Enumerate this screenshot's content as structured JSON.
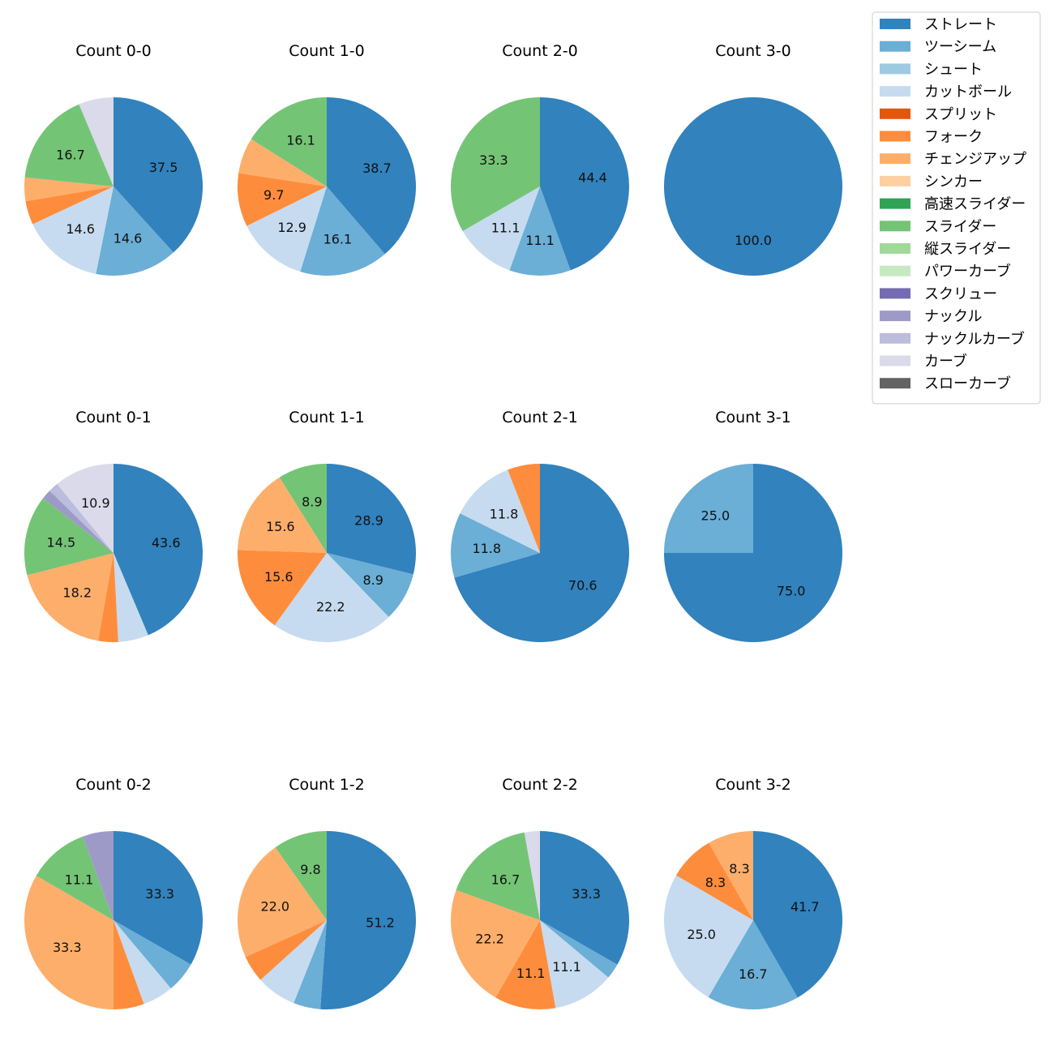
{
  "colors": {
    "ストレート": "#3182bd",
    "ツーシーム": "#6baed6",
    "シュート": "#9ecae1",
    "カットボール": "#c6dbef",
    "スプリット": "#e6550d",
    "フォーク": "#fd8d3c",
    "チェンジアップ": "#fdae6b",
    "シンカー": "#fdd0a2",
    "高速スライダー": "#31a354",
    "スライダー": "#74c476",
    "縦スライダー": "#a1d99b",
    "パワーカーブ": "#c7e9c0",
    "スクリュー": "#756bb1",
    "ナックル": "#9e9ac8",
    "ナックルカーブ": "#bcbddc",
    "カーブ": "#dadaeb",
    "スローカーブ": "#636363"
  },
  "legend": [
    "ストレート",
    "ツーシーム",
    "シュート",
    "カットボール",
    "スプリット",
    "フォーク",
    "チェンジアップ",
    "シンカー",
    "高速スライダー",
    "スライダー",
    "縦スライダー",
    "パワーカーブ",
    "スクリュー",
    "ナックル",
    "ナックルカーブ",
    "カーブ",
    "スローカーブ"
  ],
  "chart_data": [
    {
      "type": "pie",
      "title": "Count 0-0",
      "slices": [
        {
          "name": "ストレート",
          "value": 37.5,
          "label": "37.5"
        },
        {
          "name": "ツーシーム",
          "value": 14.6,
          "label": "14.6"
        },
        {
          "name": "カットボール",
          "value": 14.6,
          "label": "14.6"
        },
        {
          "name": "フォーク",
          "value": 4.2,
          "label": ""
        },
        {
          "name": "チェンジアップ",
          "value": 4.2,
          "label": ""
        },
        {
          "name": "スライダー",
          "value": 16.7,
          "label": "16.7"
        },
        {
          "name": "カーブ",
          "value": 6.2,
          "label": ""
        }
      ]
    },
    {
      "type": "pie",
      "title": "Count 1-0",
      "slices": [
        {
          "name": "ストレート",
          "value": 38.7,
          "label": "38.7"
        },
        {
          "name": "ツーシーム",
          "value": 16.1,
          "label": "16.1"
        },
        {
          "name": "カットボール",
          "value": 12.9,
          "label": "12.9"
        },
        {
          "name": "フォーク",
          "value": 9.7,
          "label": "9.7"
        },
        {
          "name": "チェンジアップ",
          "value": 6.5,
          "label": ""
        },
        {
          "name": "スライダー",
          "value": 16.1,
          "label": "16.1"
        }
      ]
    },
    {
      "type": "pie",
      "title": "Count 2-0",
      "slices": [
        {
          "name": "ストレート",
          "value": 44.4,
          "label": "44.4"
        },
        {
          "name": "ツーシーム",
          "value": 11.1,
          "label": "11.1"
        },
        {
          "name": "カットボール",
          "value": 11.1,
          "label": "11.1"
        },
        {
          "name": "スライダー",
          "value": 33.3,
          "label": "33.3"
        }
      ]
    },
    {
      "type": "pie",
      "title": "Count 3-0",
      "slices": [
        {
          "name": "ストレート",
          "value": 100.0,
          "label": "100.0"
        }
      ]
    },
    {
      "type": "pie",
      "title": "Count 0-1",
      "slices": [
        {
          "name": "ストレート",
          "value": 43.6,
          "label": "43.6"
        },
        {
          "name": "カットボール",
          "value": 5.5,
          "label": ""
        },
        {
          "name": "フォーク",
          "value": 3.6,
          "label": ""
        },
        {
          "name": "チェンジアップ",
          "value": 18.2,
          "label": "18.2"
        },
        {
          "name": "スライダー",
          "value": 14.5,
          "label": "14.5"
        },
        {
          "name": "ナックル",
          "value": 1.8,
          "label": ""
        },
        {
          "name": "ナックルカーブ",
          "value": 1.8,
          "label": ""
        },
        {
          "name": "カーブ",
          "value": 10.9,
          "label": "10.9"
        }
      ]
    },
    {
      "type": "pie",
      "title": "Count 1-1",
      "slices": [
        {
          "name": "ストレート",
          "value": 28.9,
          "label": "28.9"
        },
        {
          "name": "ツーシーム",
          "value": 8.9,
          "label": "8.9"
        },
        {
          "name": "カットボール",
          "value": 22.2,
          "label": "22.2"
        },
        {
          "name": "フォーク",
          "value": 15.6,
          "label": "15.6"
        },
        {
          "name": "チェンジアップ",
          "value": 15.6,
          "label": "15.6"
        },
        {
          "name": "スライダー",
          "value": 8.9,
          "label": "8.9"
        }
      ]
    },
    {
      "type": "pie",
      "title": "Count 2-1",
      "slices": [
        {
          "name": "ストレート",
          "value": 70.6,
          "label": "70.6"
        },
        {
          "name": "ツーシーム",
          "value": 11.8,
          "label": "11.8"
        },
        {
          "name": "カットボール",
          "value": 11.8,
          "label": "11.8"
        },
        {
          "name": "フォーク",
          "value": 5.9,
          "label": ""
        }
      ]
    },
    {
      "type": "pie",
      "title": "Count 3-1",
      "slices": [
        {
          "name": "ストレート",
          "value": 75.0,
          "label": "75.0"
        },
        {
          "name": "ツーシーム",
          "value": 25.0,
          "label": "25.0"
        }
      ]
    },
    {
      "type": "pie",
      "title": "Count 0-2",
      "slices": [
        {
          "name": "ストレート",
          "value": 33.3,
          "label": "33.3"
        },
        {
          "name": "ツーシーム",
          "value": 5.6,
          "label": ""
        },
        {
          "name": "カットボール",
          "value": 5.6,
          "label": ""
        },
        {
          "name": "フォーク",
          "value": 5.6,
          "label": ""
        },
        {
          "name": "チェンジアップ",
          "value": 33.3,
          "label": "33.3"
        },
        {
          "name": "スライダー",
          "value": 11.1,
          "label": "11.1"
        },
        {
          "name": "ナックル",
          "value": 5.6,
          "label": ""
        }
      ]
    },
    {
      "type": "pie",
      "title": "Count 1-2",
      "slices": [
        {
          "name": "ストレート",
          "value": 51.2,
          "label": "51.2"
        },
        {
          "name": "ツーシーム",
          "value": 4.9,
          "label": ""
        },
        {
          "name": "カットボール",
          "value": 7.3,
          "label": ""
        },
        {
          "name": "フォーク",
          "value": 4.9,
          "label": ""
        },
        {
          "name": "チェンジアップ",
          "value": 22.0,
          "label": "22.0"
        },
        {
          "name": "スライダー",
          "value": 9.8,
          "label": "9.8"
        }
      ]
    },
    {
      "type": "pie",
      "title": "Count 2-2",
      "slices": [
        {
          "name": "ストレート",
          "value": 33.3,
          "label": "33.3"
        },
        {
          "name": "ツーシーム",
          "value": 2.8,
          "label": ""
        },
        {
          "name": "カットボール",
          "value": 11.1,
          "label": "11.1"
        },
        {
          "name": "フォーク",
          "value": 11.1,
          "label": "11.1"
        },
        {
          "name": "チェンジアップ",
          "value": 22.2,
          "label": "22.2"
        },
        {
          "name": "スライダー",
          "value": 16.7,
          "label": "16.7"
        },
        {
          "name": "カーブ",
          "value": 2.8,
          "label": ""
        }
      ]
    },
    {
      "type": "pie",
      "title": "Count 3-2",
      "slices": [
        {
          "name": "ストレート",
          "value": 41.7,
          "label": "41.7"
        },
        {
          "name": "ツーシーム",
          "value": 16.7,
          "label": "16.7"
        },
        {
          "name": "カットボール",
          "value": 25.0,
          "label": "25.0"
        },
        {
          "name": "フォーク",
          "value": 8.3,
          "label": "8.3"
        },
        {
          "name": "チェンジアップ",
          "value": 8.3,
          "label": "8.3"
        }
      ]
    }
  ]
}
